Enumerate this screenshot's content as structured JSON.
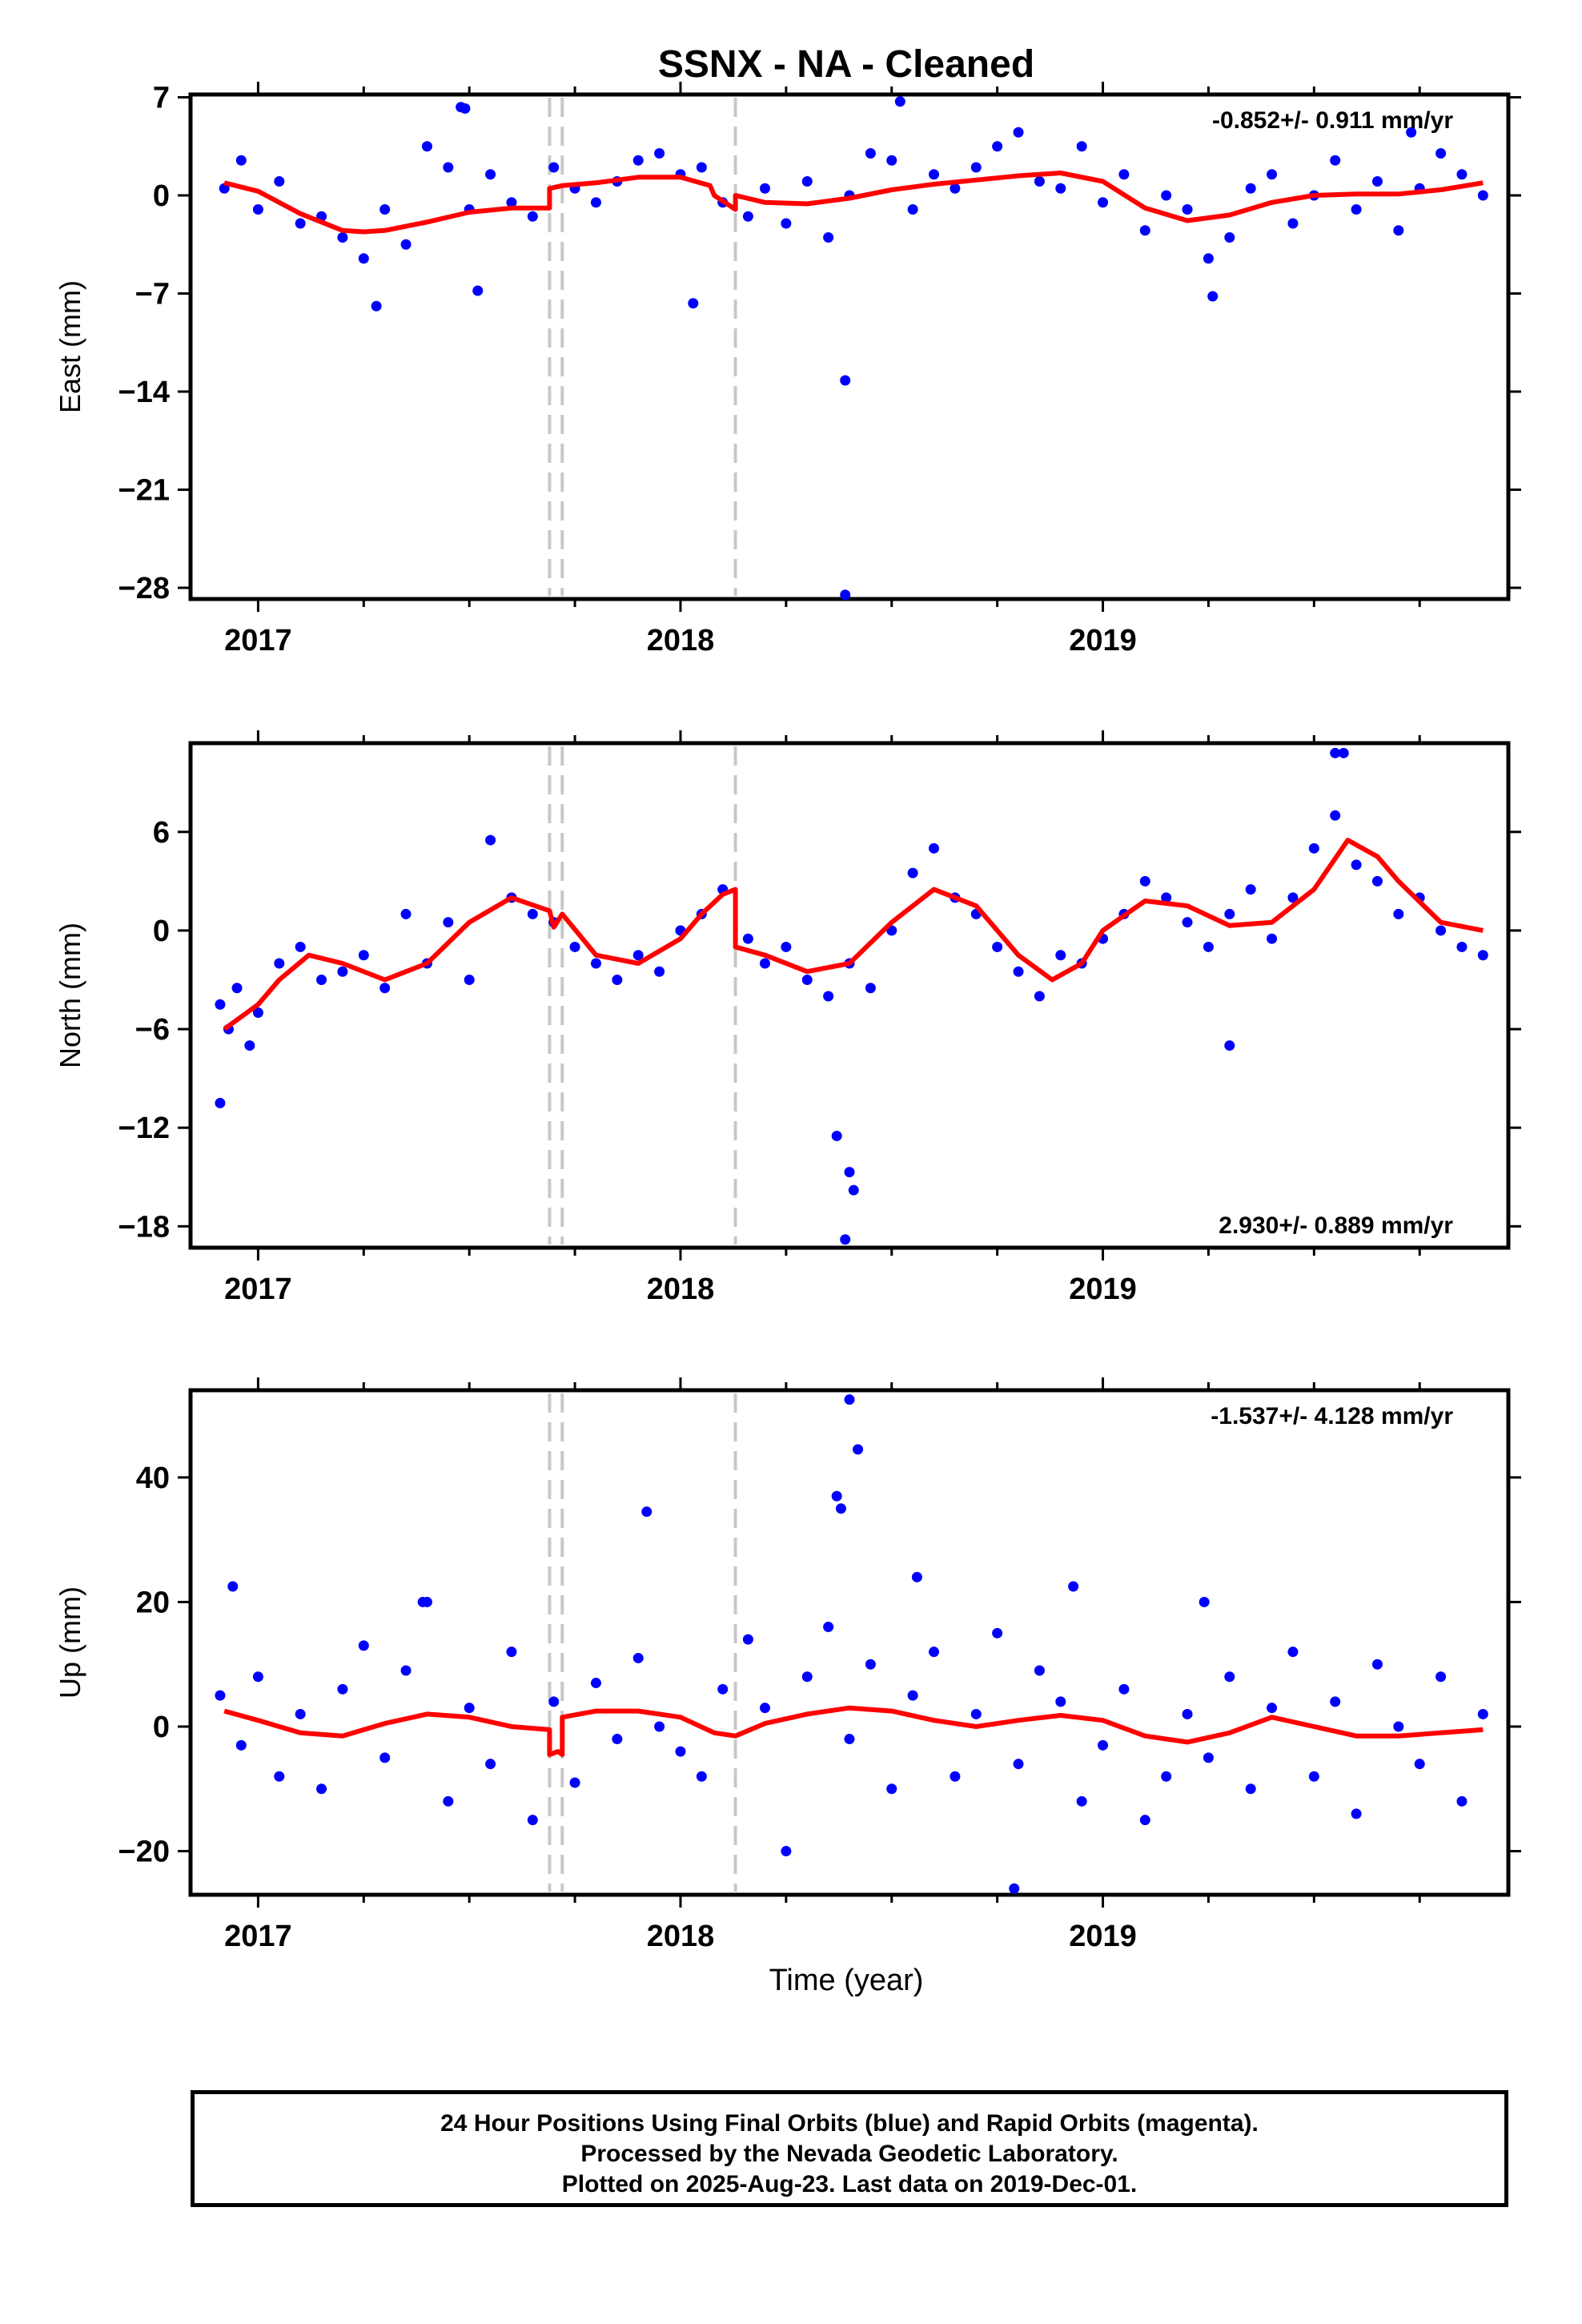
{
  "title": "SSNX  - NA - Cleaned",
  "xlabel": "Time (year)",
  "footer": [
    "24 Hour Positions Using Final Orbits (blue) and Rapid Orbits (magenta).",
    "Processed by the Nevada Geodetic Laboratory.",
    "Plotted on 2025-Aug-23. Last data on 2019-Dec-01."
  ],
  "colors": {
    "points": "#0000ff",
    "model": "#ff0000",
    "breaks": "#c8c8c8"
  },
  "chart_data": [
    {
      "type": "scatter",
      "ylabel": "East (mm)",
      "rate": "-0.852+/- 0.911 mm/yr",
      "rate_position": "top-right",
      "xlim": [
        2016.84,
        2019.96
      ],
      "ylim": [
        -28.8,
        7.2
      ],
      "yticks": [
        7,
        0,
        -7,
        -14,
        -21,
        -28
      ],
      "yticklabels": [
        "7",
        "0",
        "−7",
        "−14",
        "−21",
        "−28"
      ],
      "xticks": [
        2017,
        2018,
        2019
      ],
      "xticklabels": [
        "2017",
        "2018",
        "2019"
      ],
      "breaks": [
        2017.69,
        2017.72,
        2018.13
      ],
      "grid": false,
      "series": [
        {
          "style": "points",
          "x": [
            2016.92,
            2016.96,
            2017.0,
            2017.05,
            2017.1,
            2017.15,
            2017.2,
            2017.25,
            2017.3,
            2017.35,
            2017.4,
            2017.45,
            2017.5,
            2017.55,
            2017.6,
            2017.65,
            2017.7,
            2017.75,
            2017.8,
            2017.85,
            2017.9,
            2017.95,
            2018.0,
            2018.05,
            2018.1,
            2018.16,
            2018.2,
            2018.25,
            2018.3,
            2018.35,
            2018.4,
            2018.45,
            2018.5,
            2018.55,
            2018.6,
            2018.65,
            2018.7,
            2018.75,
            2018.8,
            2018.85,
            2018.9,
            2018.95,
            2019.0,
            2019.05,
            2019.1,
            2019.15,
            2019.2,
            2019.25,
            2019.3,
            2019.35,
            2019.4,
            2019.45,
            2019.5,
            2019.55,
            2019.6,
            2019.65,
            2019.7,
            2019.75,
            2019.8,
            2019.85,
            2019.9,
            2017.48,
            2017.49,
            2017.52,
            2017.28,
            2018.03,
            2018.39,
            2018.39,
            2018.52,
            2019.26,
            2019.73
          ],
          "y": [
            0.5,
            2.5,
            -1.0,
            1.0,
            -2.0,
            -1.5,
            -3.0,
            -4.5,
            -1.0,
            -3.5,
            3.5,
            2.0,
            -1.0,
            1.5,
            -0.5,
            -1.5,
            2.0,
            0.5,
            -0.5,
            1.0,
            2.5,
            3.0,
            1.5,
            2.0,
            -0.5,
            -1.5,
            0.5,
            -2.0,
            1.0,
            -3.0,
            0.0,
            3.0,
            2.5,
            -1.0,
            1.5,
            0.5,
            2.0,
            3.5,
            4.5,
            1.0,
            0.5,
            3.5,
            -0.5,
            1.5,
            -2.5,
            0.0,
            -1.0,
            -4.5,
            -3.0,
            0.5,
            1.5,
            -2.0,
            0.0,
            2.5,
            -1.0,
            1.0,
            -2.5,
            0.5,
            3.0,
            1.5,
            0.0,
            6.3,
            6.2,
            -6.8,
            -7.9,
            -7.7,
            -13.2,
            -28.5,
            6.7,
            -7.2,
            4.5
          ]
        },
        {
          "style": "line",
          "x": [
            2016.92,
            2017.0,
            2017.1,
            2017.2,
            2017.25,
            2017.3,
            2017.4,
            2017.5,
            2017.6,
            2017.69,
            2017.69,
            2017.72,
            2017.72,
            2017.8,
            2017.9,
            2018.0,
            2018.07,
            2018.08,
            2018.13,
            2018.13,
            2018.2,
            2018.3,
            2018.4,
            2018.5,
            2018.6,
            2018.7,
            2018.8,
            2018.9,
            2019.0,
            2019.1,
            2019.2,
            2019.3,
            2019.4,
            2019.5,
            2019.6,
            2019.7,
            2019.8,
            2019.9
          ],
          "y": [
            0.9,
            0.3,
            -1.3,
            -2.5,
            -2.6,
            -2.5,
            -1.9,
            -1.2,
            -0.9,
            -0.9,
            0.5,
            0.7,
            0.7,
            0.9,
            1.3,
            1.3,
            0.7,
            0.0,
            -1.0,
            0.0,
            -0.5,
            -0.6,
            -0.2,
            0.4,
            0.8,
            1.1,
            1.4,
            1.6,
            1.0,
            -0.9,
            -1.8,
            -1.4,
            -0.5,
            0.0,
            0.1,
            0.1,
            0.4,
            0.9
          ]
        }
      ]
    },
    {
      "type": "scatter",
      "ylabel": "North (mm)",
      "rate": "2.930+/- 0.889 mm/yr",
      "rate_position": "bottom-right",
      "xlim": [
        2016.84,
        2019.96
      ],
      "ylim": [
        -19.3,
        11.4
      ],
      "yticks": [
        6,
        0,
        -6,
        -12,
        -18
      ],
      "yticklabels": [
        "6",
        "0",
        "−6",
        "−12",
        "−18"
      ],
      "xticks": [
        2017,
        2018,
        2019
      ],
      "xticklabels": [
        "2017",
        "2018",
        "2019"
      ],
      "breaks": [
        2017.69,
        2017.72,
        2018.13
      ],
      "grid": false,
      "series": [
        {
          "style": "points",
          "x": [
            2016.91,
            2016.93,
            2016.95,
            2016.98,
            2017.0,
            2017.05,
            2017.1,
            2017.15,
            2017.2,
            2017.25,
            2017.3,
            2017.35,
            2017.4,
            2017.45,
            2017.5,
            2017.55,
            2017.6,
            2017.65,
            2017.7,
            2017.75,
            2017.8,
            2017.85,
            2017.9,
            2017.95,
            2018.0,
            2018.05,
            2018.1,
            2018.16,
            2018.2,
            2018.25,
            2018.3,
            2018.35,
            2018.4,
            2018.45,
            2018.5,
            2018.55,
            2018.6,
            2018.65,
            2018.7,
            2018.75,
            2018.8,
            2018.85,
            2018.9,
            2018.95,
            2019.0,
            2019.05,
            2019.1,
            2019.15,
            2019.2,
            2019.25,
            2019.3,
            2019.35,
            2019.4,
            2019.45,
            2019.5,
            2019.55,
            2019.6,
            2019.65,
            2019.7,
            2019.75,
            2019.8,
            2019.85,
            2019.9,
            2016.91,
            2018.37,
            2018.39,
            2018.4,
            2018.41,
            2019.55,
            2019.57,
            2019.3
          ],
          "y": [
            -4.5,
            -6.0,
            -3.5,
            -7.0,
            -5.0,
            -2.0,
            -1.0,
            -3.0,
            -2.5,
            -1.5,
            -3.5,
            1.0,
            -2.0,
            0.5,
            -3.0,
            5.5,
            2.0,
            1.0,
            0.5,
            -1.0,
            -2.0,
            -3.0,
            -1.5,
            -2.5,
            0.0,
            1.0,
            2.5,
            -0.5,
            -2.0,
            -1.0,
            -3.0,
            -4.0,
            -2.0,
            -3.5,
            0.0,
            3.5,
            5.0,
            2.0,
            1.0,
            -1.0,
            -2.5,
            -4.0,
            -1.5,
            -2.0,
            -0.5,
            1.0,
            3.0,
            2.0,
            0.5,
            -1.0,
            1.0,
            2.5,
            -0.5,
            2.0,
            5.0,
            7.0,
            4.0,
            3.0,
            1.0,
            2.0,
            0.0,
            -1.0,
            -1.5,
            -10.5,
            -12.5,
            -18.8,
            -14.7,
            -15.8,
            10.8,
            10.8,
            -7.0
          ]
        },
        {
          "style": "line",
          "x": [
            2016.92,
            2017.0,
            2017.05,
            2017.12,
            2017.2,
            2017.3,
            2017.4,
            2017.5,
            2017.6,
            2017.69,
            2017.7,
            2017.72,
            2017.8,
            2017.9,
            2018.0,
            2018.05,
            2018.1,
            2018.13,
            2018.13,
            2018.2,
            2018.3,
            2018.4,
            2018.5,
            2018.6,
            2018.7,
            2018.8,
            2018.88,
            2018.95,
            2019.0,
            2019.1,
            2019.2,
            2019.3,
            2019.4,
            2019.5,
            2019.58,
            2019.65,
            2019.7,
            2019.8,
            2019.9
          ],
          "y": [
            -6.0,
            -4.5,
            -3.0,
            -1.5,
            -2.0,
            -3.0,
            -2.0,
            0.5,
            2.0,
            1.2,
            0.2,
            1.0,
            -1.5,
            -2.0,
            -0.5,
            1.0,
            2.2,
            2.5,
            -1.0,
            -1.5,
            -2.5,
            -2.0,
            0.5,
            2.5,
            1.5,
            -1.5,
            -3.0,
            -2.0,
            0.0,
            1.8,
            1.5,
            0.3,
            0.5,
            2.5,
            5.5,
            4.5,
            3.0,
            0.5,
            0.0
          ]
        }
      ]
    },
    {
      "type": "scatter",
      "ylabel": "Up (mm)",
      "rate": "-1.537+/- 4.128 mm/yr",
      "rate_position": "top-right",
      "xlim": [
        2016.84,
        2019.96
      ],
      "ylim": [
        -27,
        54
      ],
      "yticks": [
        40,
        20,
        0,
        -20
      ],
      "yticklabels": [
        "40",
        "20",
        "0",
        "−20"
      ],
      "xticks": [
        2017,
        2018,
        2019
      ],
      "xticklabels": [
        "2017",
        "2018",
        "2019"
      ],
      "breaks": [
        2017.69,
        2017.72,
        2018.13
      ],
      "grid": false,
      "series": [
        {
          "style": "points",
          "x": [
            2016.91,
            2016.96,
            2017.0,
            2017.05,
            2017.1,
            2017.15,
            2017.2,
            2017.25,
            2017.3,
            2017.35,
            2017.4,
            2017.45,
            2017.5,
            2017.55,
            2017.6,
            2017.65,
            2017.7,
            2017.75,
            2017.8,
            2017.85,
            2017.9,
            2017.95,
            2018.0,
            2018.05,
            2018.1,
            2018.16,
            2018.2,
            2018.25,
            2018.3,
            2018.35,
            2018.4,
            2018.45,
            2018.5,
            2018.55,
            2018.6,
            2018.65,
            2018.7,
            2018.75,
            2018.8,
            2018.85,
            2018.9,
            2018.95,
            2019.0,
            2019.05,
            2019.1,
            2019.15,
            2019.2,
            2019.25,
            2019.3,
            2019.35,
            2019.4,
            2019.45,
            2019.5,
            2019.55,
            2019.6,
            2019.65,
            2019.7,
            2019.75,
            2019.8,
            2019.85,
            2019.9,
            2016.94,
            2017.39,
            2017.92,
            2018.37,
            2018.38,
            2018.4,
            2018.42,
            2018.56,
            2018.93,
            2018.79,
            2019.24
          ],
          "y": [
            5.0,
            -3.0,
            8.0,
            -8.0,
            2.0,
            -10.0,
            6.0,
            13.0,
            -5.0,
            9.0,
            20.0,
            -12.0,
            3.0,
            -6.0,
            12.0,
            -15.0,
            4.0,
            -9.0,
            7.0,
            -2.0,
            11.0,
            0.0,
            -4.0,
            -8.0,
            6.0,
            14.0,
            3.0,
            -20.0,
            8.0,
            16.0,
            -2.0,
            10.0,
            -10.0,
            5.0,
            12.0,
            -8.0,
            2.0,
            15.0,
            -6.0,
            9.0,
            4.0,
            -12.0,
            -3.0,
            6.0,
            -15.0,
            -8.0,
            2.0,
            -5.0,
            8.0,
            -10.0,
            3.0,
            12.0,
            -8.0,
            4.0,
            -14.0,
            10.0,
            0.0,
            -6.0,
            8.0,
            -12.0,
            2.0,
            22.5,
            20.0,
            34.5,
            37.0,
            35.0,
            52.5,
            44.5,
            24.0,
            22.5,
            -26.0,
            20.0
          ]
        },
        {
          "style": "line",
          "x": [
            2016.92,
            2017.0,
            2017.1,
            2017.2,
            2017.3,
            2017.4,
            2017.5,
            2017.6,
            2017.69,
            2017.69,
            2017.71,
            2017.72,
            2017.72,
            2017.8,
            2017.9,
            2018.0,
            2018.08,
            2018.13,
            2018.2,
            2018.3,
            2018.4,
            2018.5,
            2018.6,
            2018.7,
            2018.8,
            2018.9,
            2019.0,
            2019.1,
            2019.2,
            2019.3,
            2019.4,
            2019.5,
            2019.6,
            2019.7,
            2019.8,
            2019.9
          ],
          "y": [
            2.5,
            1.0,
            -1.0,
            -1.5,
            0.5,
            2.0,
            1.5,
            0.0,
            -0.5,
            -4.5,
            -4.0,
            -4.5,
            1.5,
            2.5,
            2.5,
            1.5,
            -1.0,
            -1.5,
            0.5,
            2.0,
            3.0,
            2.5,
            1.0,
            0.0,
            1.0,
            1.8,
            1.0,
            -1.5,
            -2.5,
            -1.0,
            1.5,
            0.0,
            -1.5,
            -1.5,
            -1.0,
            -0.5
          ]
        }
      ]
    }
  ]
}
